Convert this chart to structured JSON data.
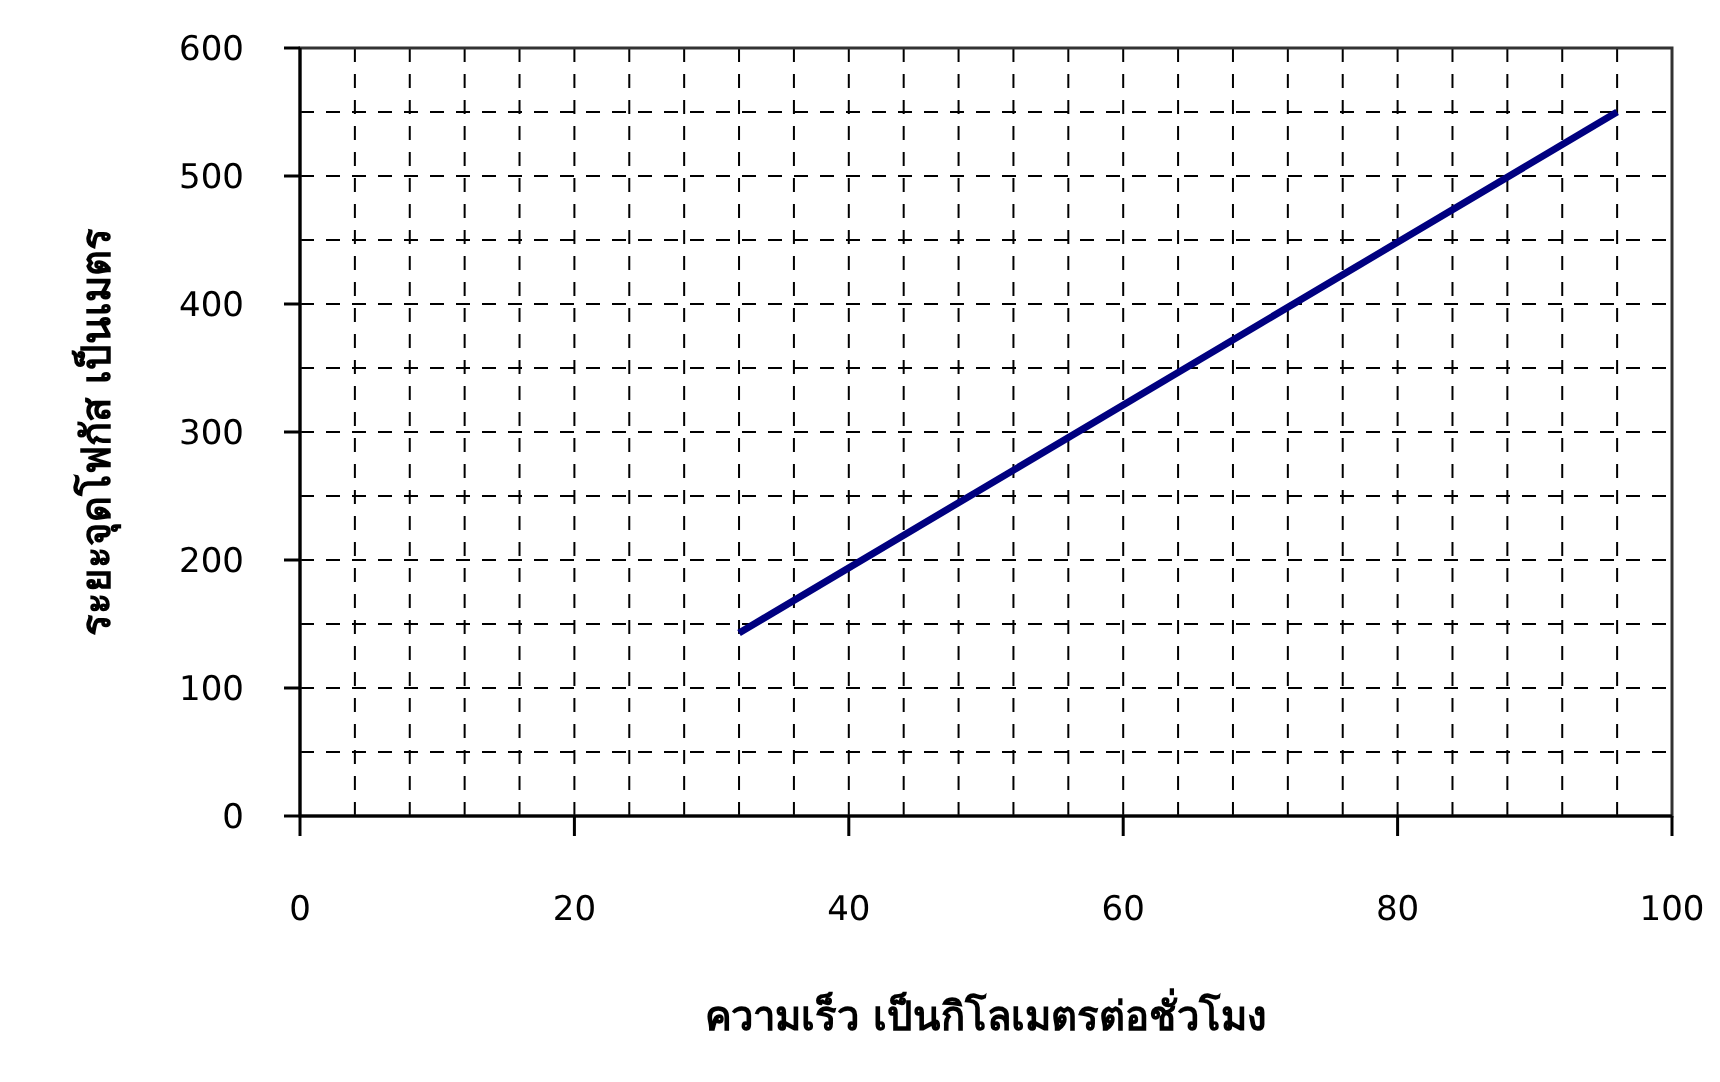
{
  "chart_data": {
    "type": "line",
    "xlabel": "ความเร็ว เป็นกิโลเมตรต่อชั่วโมง",
    "ylabel": "ระยะจุดโฟกัส เป็นเมตร",
    "series": [
      {
        "color": "#000080",
        "x": [
          32,
          96
        ],
        "values": [
          143,
          550
        ]
      }
    ],
    "xlim": [
      0,
      100
    ],
    "ylim": [
      0,
      600
    ],
    "xticks": [
      0,
      {
        "value": 4,
        "label": null
      },
      {
        "value": 8,
        "label": null
      },
      {
        "value": 12,
        "label": null
      },
      {
        "value": 16,
        "label": null
      },
      20,
      {
        "value": 24,
        "label": null
      },
      {
        "value": 28,
        "label": null
      },
      {
        "value": 32,
        "label": null
      },
      {
        "value": 36,
        "label": null
      },
      40,
      {
        "value": 44,
        "label": null
      },
      {
        "value": 48,
        "label": null
      },
      {
        "value": 52,
        "label": null
      },
      {
        "value": 56,
        "label": null
      },
      60,
      {
        "value": 64,
        "label": null
      },
      {
        "value": 68,
        "label": null
      },
      {
        "value": 72,
        "label": null
      },
      {
        "value": 76,
        "label": null
      },
      80,
      {
        "value": 84,
        "label": null
      },
      {
        "value": 88,
        "label": null
      },
      {
        "value": 92,
        "label": null
      },
      {
        "value": 96,
        "label": null
      },
      100
    ],
    "yticks": [
      0,
      {
        "value": 50,
        "label": null
      },
      100,
      {
        "value": 150,
        "label": null
      },
      200,
      {
        "value": 250,
        "label": null
      },
      300,
      {
        "value": 350,
        "label": null
      },
      400,
      {
        "value": 450,
        "label": null
      },
      500,
      {
        "value": 550,
        "label": null
      },
      600
    ],
    "grid": true,
    "marker": "none",
    "line_style": "solid"
  }
}
